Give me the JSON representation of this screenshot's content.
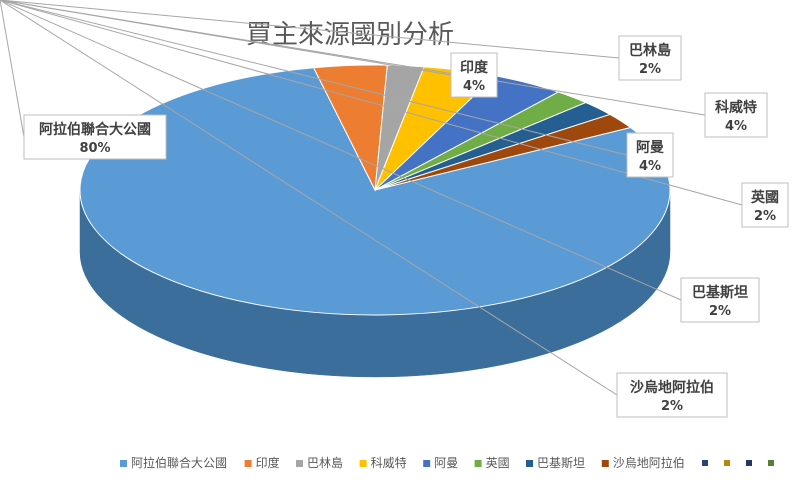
{
  "chart_data": {
    "type": "pie",
    "title": "買主來源國別分析",
    "slices": [
      {
        "label": "阿拉伯聯合大公國",
        "value": 80,
        "display": "80%",
        "color": "#5b9bd5",
        "side": "#3b6e9a"
      },
      {
        "label": "印度",
        "value": 4,
        "display": "4%",
        "color": "#ed7d31",
        "side": "#b35a1e"
      },
      {
        "label": "巴林島",
        "value": 2,
        "display": "2%",
        "color": "#a5a5a5",
        "side": "#7a7a7a"
      },
      {
        "label": "科威特",
        "value": 4,
        "display": "4%",
        "color": "#ffc000",
        "side": "#c79400"
      },
      {
        "label": "阿曼",
        "value": 4,
        "display": "4%",
        "color": "#4472c4",
        "side": "#2f5597"
      },
      {
        "label": "英國",
        "value": 2,
        "display": "2%",
        "color": "#70ad47",
        "side": "#4e7d31"
      },
      {
        "label": "巴基斯坦",
        "value": 2,
        "display": "2%",
        "color": "#255e91",
        "side": "#17406a"
      },
      {
        "label": "沙烏地阿拉伯",
        "value": 2,
        "display": "2%",
        "color": "#9e480e",
        "side": "#6f3208"
      }
    ],
    "legend_position": "bottom",
    "legend_extra_markers": [
      "#264478",
      "#b8860b",
      "#1f3864",
      "#548235"
    ]
  }
}
